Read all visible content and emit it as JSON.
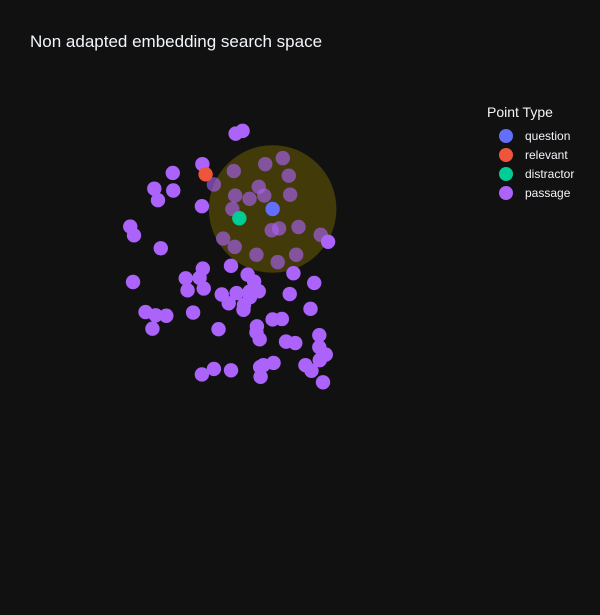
{
  "chart_data": {
    "type": "scatter",
    "title": "Non adapted embedding search space",
    "legend": {
      "title": "Point Type",
      "placement": "top-right",
      "items": [
        {
          "name": "question",
          "color": "#636efa"
        },
        {
          "name": "relevant",
          "color": "#ef553b"
        },
        {
          "name": "distractor",
          "color": "#00cc96"
        },
        {
          "name": "passage",
          "color": "#ab63fa"
        }
      ]
    },
    "axes": {
      "x_range": [
        -4.5,
        4.5
      ],
      "y_range": [
        -4.5,
        4.5
      ],
      "grid": false,
      "visible": false
    },
    "search_region": {
      "center": [
        0.1,
        1.45
      ],
      "radius": 1.38,
      "fill": "#6f5f00",
      "opacity": 0.52
    },
    "series": [
      {
        "name": "question",
        "color": "#636efa",
        "points": [
          [
            0.1,
            1.45
          ]
        ]
      },
      {
        "name": "relevant",
        "color": "#ef553b",
        "points": [
          [
            -1.35,
            2.2
          ]
        ]
      },
      {
        "name": "distractor",
        "color": "#00cc96",
        "points": [
          [
            -0.62,
            1.25
          ]
        ]
      },
      {
        "name": "passage",
        "color": "#ab63fa",
        "points": [
          [
            -0.7,
            3.08
          ],
          [
            -0.55,
            3.14
          ],
          [
            -1.42,
            2.42
          ],
          [
            -2.06,
            2.23
          ],
          [
            -2.46,
            1.89
          ],
          [
            -2.05,
            1.85
          ],
          [
            -2.38,
            1.64
          ],
          [
            -1.43,
            1.51
          ],
          [
            -2.98,
            1.07
          ],
          [
            -2.9,
            0.88
          ],
          [
            -2.32,
            0.6
          ],
          [
            0.32,
            2.55
          ],
          [
            -0.74,
            2.27
          ],
          [
            -0.06,
            2.42
          ],
          [
            0.45,
            2.17
          ],
          [
            -1.17,
            1.98
          ],
          [
            -0.2,
            1.93
          ],
          [
            -0.71,
            1.74
          ],
          [
            -0.4,
            1.67
          ],
          [
            -0.08,
            1.74
          ],
          [
            0.48,
            1.76
          ],
          [
            -0.77,
            1.45
          ],
          [
            0.24,
            1.03
          ],
          [
            0.08,
            0.99
          ],
          [
            0.66,
            1.06
          ],
          [
            -0.97,
            0.81
          ],
          [
            -0.72,
            0.63
          ],
          [
            -0.25,
            0.46
          ],
          [
            0.21,
            0.3
          ],
          [
            0.61,
            0.46
          ],
          [
            1.14,
            0.89
          ],
          [
            1.3,
            0.74
          ],
          [
            -0.8,
            0.22
          ],
          [
            -1.41,
            0.16
          ],
          [
            0.55,
            0.06
          ],
          [
            -0.44,
            0.03
          ],
          [
            -0.3,
            -0.12
          ],
          [
            -1.78,
            -0.05
          ],
          [
            -1.48,
            -0.04
          ],
          [
            -2.92,
            -0.13
          ],
          [
            1.0,
            -0.15
          ],
          [
            -1.39,
            -0.27
          ],
          [
            -1.74,
            -0.31
          ],
          [
            -0.2,
            -0.33
          ],
          [
            -0.4,
            -0.34
          ],
          [
            -0.68,
            -0.37
          ],
          [
            -0.39,
            -0.46
          ],
          [
            0.47,
            -0.39
          ],
          [
            0.92,
            -0.71
          ],
          [
            -0.85,
            -0.59
          ],
          [
            -1.0,
            -0.4
          ],
          [
            -0.52,
            -0.63
          ],
          [
            -0.53,
            -0.73
          ],
          [
            0.1,
            -0.94
          ],
          [
            0.3,
            -0.93
          ],
          [
            -0.24,
            -1.09
          ],
          [
            -1.07,
            -1.15
          ],
          [
            -0.25,
            -1.22
          ],
          [
            -2.2,
            -0.86
          ],
          [
            -2.43,
            -0.85
          ],
          [
            -1.62,
            -0.79
          ],
          [
            -2.65,
            -0.78
          ],
          [
            -2.5,
            -1.14
          ],
          [
            -0.18,
            -1.37
          ],
          [
            0.39,
            -1.42
          ],
          [
            0.59,
            -1.45
          ],
          [
            1.11,
            -1.54
          ],
          [
            1.11,
            -1.28
          ],
          [
            1.25,
            -1.7
          ],
          [
            1.12,
            -1.82
          ],
          [
            0.12,
            -1.88
          ],
          [
            -0.1,
            -1.93
          ],
          [
            -1.17,
            -2.01
          ],
          [
            -0.8,
            -2.04
          ],
          [
            -0.17,
            -1.97
          ],
          [
            -0.16,
            -2.18
          ],
          [
            -1.43,
            -2.13
          ],
          [
            0.94,
            -2.05
          ],
          [
            1.19,
            -2.3
          ],
          [
            0.81,
            -1.93
          ]
        ]
      }
    ]
  }
}
